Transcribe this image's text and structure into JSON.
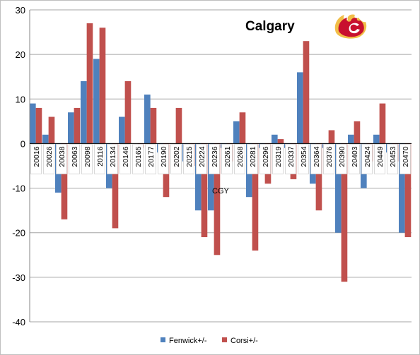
{
  "chart_data": {
    "type": "bar",
    "title": "Calgary",
    "annotation": "CGY",
    "categories": [
      "20016",
      "20026",
      "20038",
      "20063",
      "20098",
      "20116",
      "20134",
      "20146",
      "20165",
      "20177",
      "20190",
      "20202",
      "20215",
      "20224",
      "20236",
      "20261",
      "20268",
      "20281",
      "20296",
      "20319",
      "20337",
      "20354",
      "20364",
      "20376",
      "20390",
      "20403",
      "20424",
      "20449",
      "20453",
      "20470"
    ],
    "series": [
      {
        "name": "Fenwick+/-",
        "color": "#4F81BD",
        "values": [
          9,
          2,
          -11,
          7,
          14,
          19,
          -10,
          6,
          0,
          11,
          -2,
          0,
          -4,
          -15,
          -15,
          -1,
          5,
          -12,
          -1,
          2,
          -1,
          16,
          -9,
          -1,
          -20,
          2,
          -10,
          2,
          -2,
          -20
        ]
      },
      {
        "name": "Corsi+/-",
        "color": "#C0504D",
        "values": [
          8,
          6,
          -17,
          8,
          27,
          26,
          -19,
          14,
          -1,
          8,
          -12,
          8,
          -5,
          -21,
          -25,
          -4,
          7,
          -24,
          -9,
          1,
          -8,
          23,
          -15,
          3,
          -31,
          5,
          -4,
          9,
          -4,
          -21
        ]
      }
    ],
    "ylim": [
      -40,
      30
    ],
    "yticks": [
      30,
      20,
      10,
      0,
      -10,
      -20,
      -30,
      -40
    ],
    "grid": true,
    "legend_position": "bottom"
  },
  "logo": {
    "name": "flaming-c-logo",
    "colors": [
      "#C8102E",
      "#F1BE48"
    ]
  }
}
